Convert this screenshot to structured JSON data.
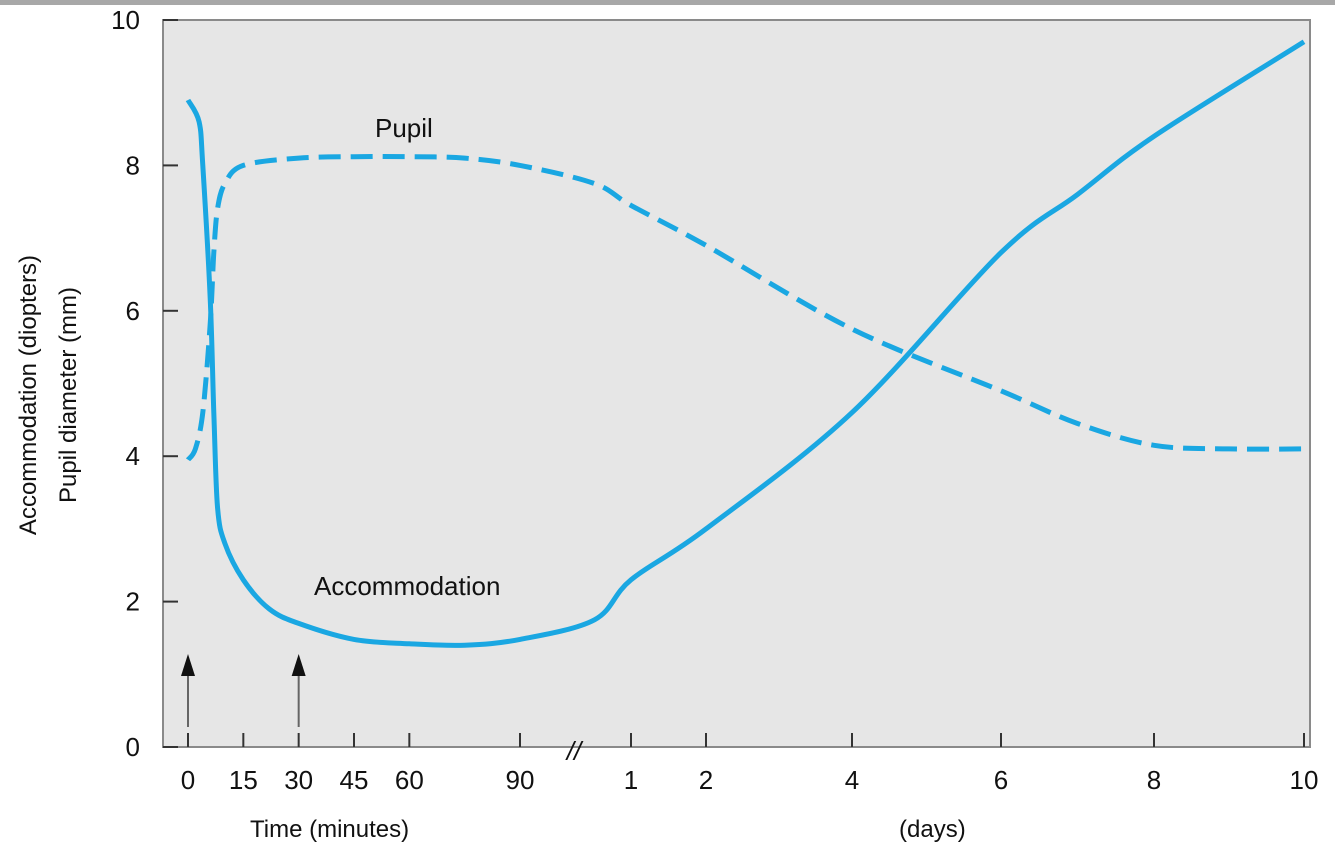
{
  "chart_data": {
    "type": "line",
    "ylabel": [
      "Accommodation (diopters)",
      "Pupil diameter (mm)"
    ],
    "ylim": [
      0,
      10
    ],
    "y_ticks": [
      "0",
      "2",
      "4",
      "6",
      "8",
      "10"
    ],
    "x_segments": [
      {
        "xlabel": "Time (minutes)",
        "range": [
          0,
          90
        ],
        "ticks": [
          "0",
          "15",
          "30",
          "45",
          "60",
          "90"
        ]
      },
      {
        "xlabel": "(days)",
        "range": [
          0,
          10
        ],
        "ticks": [
          "1",
          "2",
          "4",
          "6",
          "8",
          "10"
        ]
      }
    ],
    "axis_break": "//",
    "grid": false,
    "series": [
      {
        "name": "Accommodation",
        "style": "solid",
        "color": "#1aa7e2",
        "points": [
          [
            "min",
            0,
            8.9
          ],
          [
            "min",
            3,
            8.6
          ],
          [
            "min",
            4,
            8.0
          ],
          [
            "min",
            6,
            6.2
          ],
          [
            "min",
            7,
            4.6
          ],
          [
            "min",
            8,
            3.3
          ],
          [
            "min",
            10,
            2.8
          ],
          [
            "min",
            15,
            2.3
          ],
          [
            "min",
            22,
            1.9
          ],
          [
            "min",
            30,
            1.7
          ],
          [
            "min",
            45,
            1.48
          ],
          [
            "min",
            60,
            1.42
          ],
          [
            "min",
            75,
            1.4
          ],
          [
            "min",
            90,
            1.48
          ],
          [
            "day",
            0.5,
            1.75
          ],
          [
            "day",
            1,
            2.3
          ],
          [
            "day",
            2,
            3.0
          ],
          [
            "day",
            4,
            4.6
          ],
          [
            "day",
            6,
            6.8
          ],
          [
            "day",
            7,
            7.6
          ],
          [
            "day",
            8,
            8.4
          ],
          [
            "day",
            10,
            9.7
          ]
        ]
      },
      {
        "name": "Pupil",
        "style": "dashed",
        "color": "#1aa7e2",
        "points": [
          [
            "min",
            0,
            3.95
          ],
          [
            "min",
            2,
            4.1
          ],
          [
            "min",
            4,
            4.6
          ],
          [
            "min",
            6,
            5.8
          ],
          [
            "min",
            7,
            6.8
          ],
          [
            "min",
            8,
            7.4
          ],
          [
            "min",
            10,
            7.75
          ],
          [
            "min",
            15,
            8.0
          ],
          [
            "min",
            30,
            8.1
          ],
          [
            "min",
            45,
            8.12
          ],
          [
            "min",
            60,
            8.12
          ],
          [
            "min",
            75,
            8.1
          ],
          [
            "min",
            90,
            8.0
          ],
          [
            "day",
            0.5,
            7.75
          ],
          [
            "day",
            1,
            7.45
          ],
          [
            "day",
            2,
            6.9
          ],
          [
            "day",
            4,
            5.75
          ],
          [
            "day",
            6,
            4.9
          ],
          [
            "day",
            7,
            4.45
          ],
          [
            "day",
            8,
            4.15
          ],
          [
            "day",
            9,
            4.1
          ],
          [
            "day",
            10,
            4.1
          ]
        ]
      }
    ],
    "annotations": [
      {
        "type": "arrow",
        "at": [
          "min",
          0
        ]
      },
      {
        "type": "arrow",
        "at": [
          "min",
          30
        ]
      }
    ]
  }
}
